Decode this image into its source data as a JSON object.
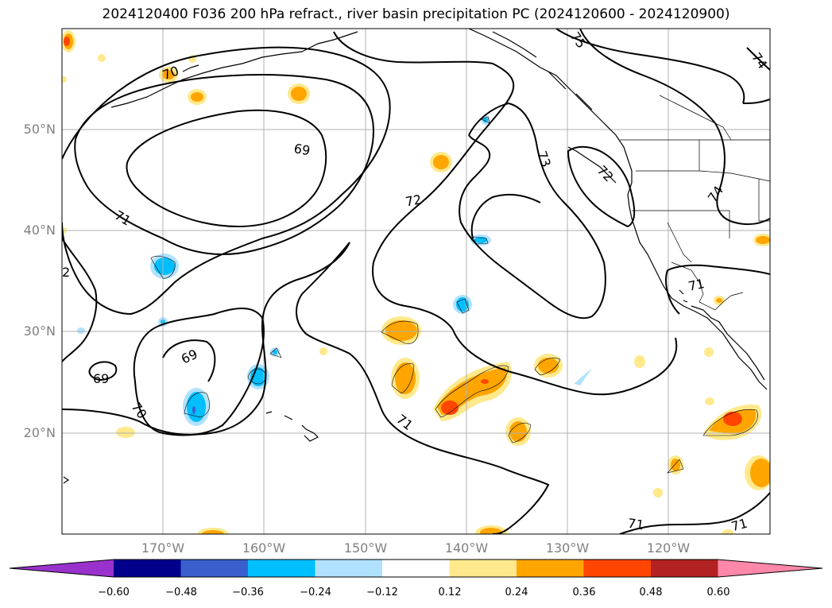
{
  "title": "2024120400 F036 200 hPa refract., river basin precipitation PC (2024120600 - 2024120900)",
  "map": {
    "lat_labels": [
      "50°N",
      "40°N",
      "30°N",
      "20°N"
    ],
    "lon_labels": [
      "170°W",
      "160°W",
      "150°W",
      "140°W",
      "130°W",
      "120°W"
    ],
    "contour_labels": [
      "69",
      "69",
      "69",
      "70",
      "70",
      "71",
      "71",
      "71",
      "71",
      "71",
      "72",
      "72",
      "73",
      "74",
      "74",
      "75",
      "2"
    ],
    "colors": {
      "contour": "#000000",
      "grid": "#b0b0b0",
      "coast": "#000000",
      "label": "#808080"
    }
  },
  "colorbar": {
    "ticks": [
      "−0.60",
      "−0.48",
      "−0.36",
      "−0.24",
      "−0.12",
      "0.12",
      "0.24",
      "0.36",
      "0.48",
      "0.60"
    ],
    "colors": [
      "#9932cc",
      "#00008b",
      "#3a5fcd",
      "#00bfff",
      "#b0e2ff",
      "#ffffff",
      "#ffe98c",
      "#ffa500",
      "#ff4500",
      "#b22222",
      "#ff88aa"
    ]
  }
}
